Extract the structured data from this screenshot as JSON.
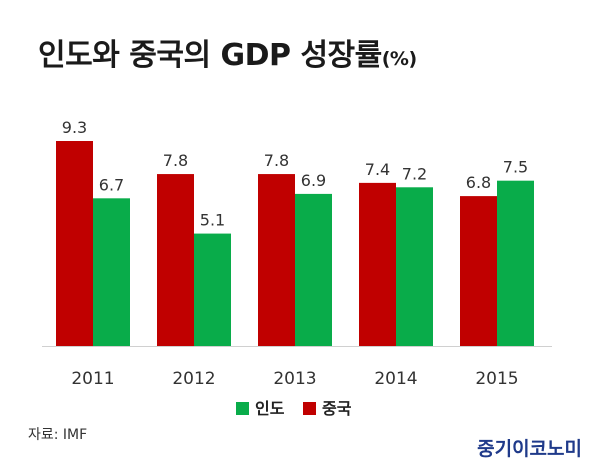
{
  "title": "인도와 중국의 GDP 성장률",
  "title_unit": "(%)",
  "source": "자료: IMF",
  "brand": "중기이코노미",
  "colors": {
    "india": "#09ac4a",
    "china": "#c00000"
  },
  "chart_data": {
    "type": "bar",
    "categories": [
      "2011",
      "2012",
      "2013",
      "2014",
      "2015"
    ],
    "series": [
      {
        "name": "중국",
        "values": [
          9.3,
          7.8,
          7.8,
          7.4,
          6.8
        ]
      },
      {
        "name": "인도",
        "values": [
          6.7,
          5.1,
          6.9,
          7.2,
          7.5
        ]
      }
    ],
    "legend": {
      "position": "bottom",
      "order": [
        "인도",
        "중국"
      ]
    },
    "ylim": [
      0,
      9.3
    ],
    "grid": false,
    "xlabel": "",
    "ylabel": ""
  }
}
